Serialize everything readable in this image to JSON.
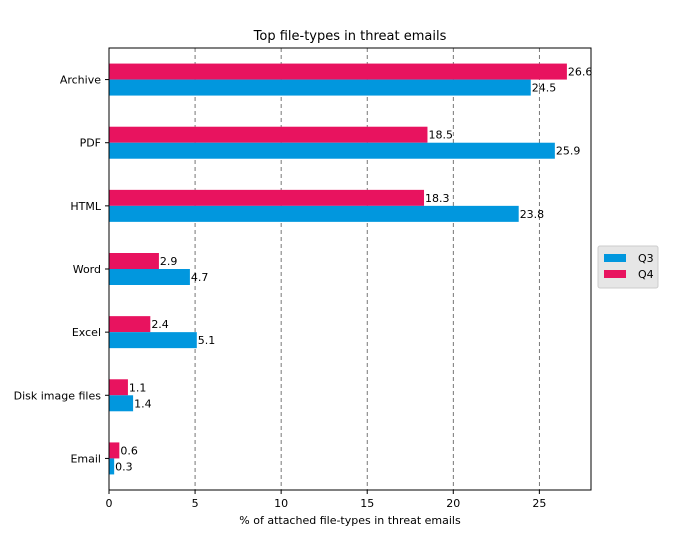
{
  "chart_data": {
    "type": "bar",
    "orientation": "horizontal",
    "title": "Top file-types in threat emails",
    "xlabel": "% of attached file-types in threat emails",
    "ylabel": "",
    "categories": [
      "Archive",
      "PDF",
      "HTML",
      "Word",
      "Excel",
      "Disk image files",
      "Email"
    ],
    "series": [
      {
        "name": "Q4",
        "color": "#e8135f",
        "values": [
          26.6,
          18.5,
          18.3,
          2.9,
          2.4,
          1.1,
          0.6
        ]
      },
      {
        "name": "Q3",
        "color": "#0197de",
        "values": [
          24.5,
          25.9,
          23.8,
          4.7,
          5.1,
          1.4,
          0.3
        ]
      }
    ],
    "legend_order": [
      "Q3",
      "Q4"
    ],
    "xlim": [
      0,
      28
    ],
    "xticks": [
      0,
      5,
      10,
      15,
      20,
      25
    ],
    "grid": "vertical dashed",
    "legend_position": "center right, outside plot"
  }
}
